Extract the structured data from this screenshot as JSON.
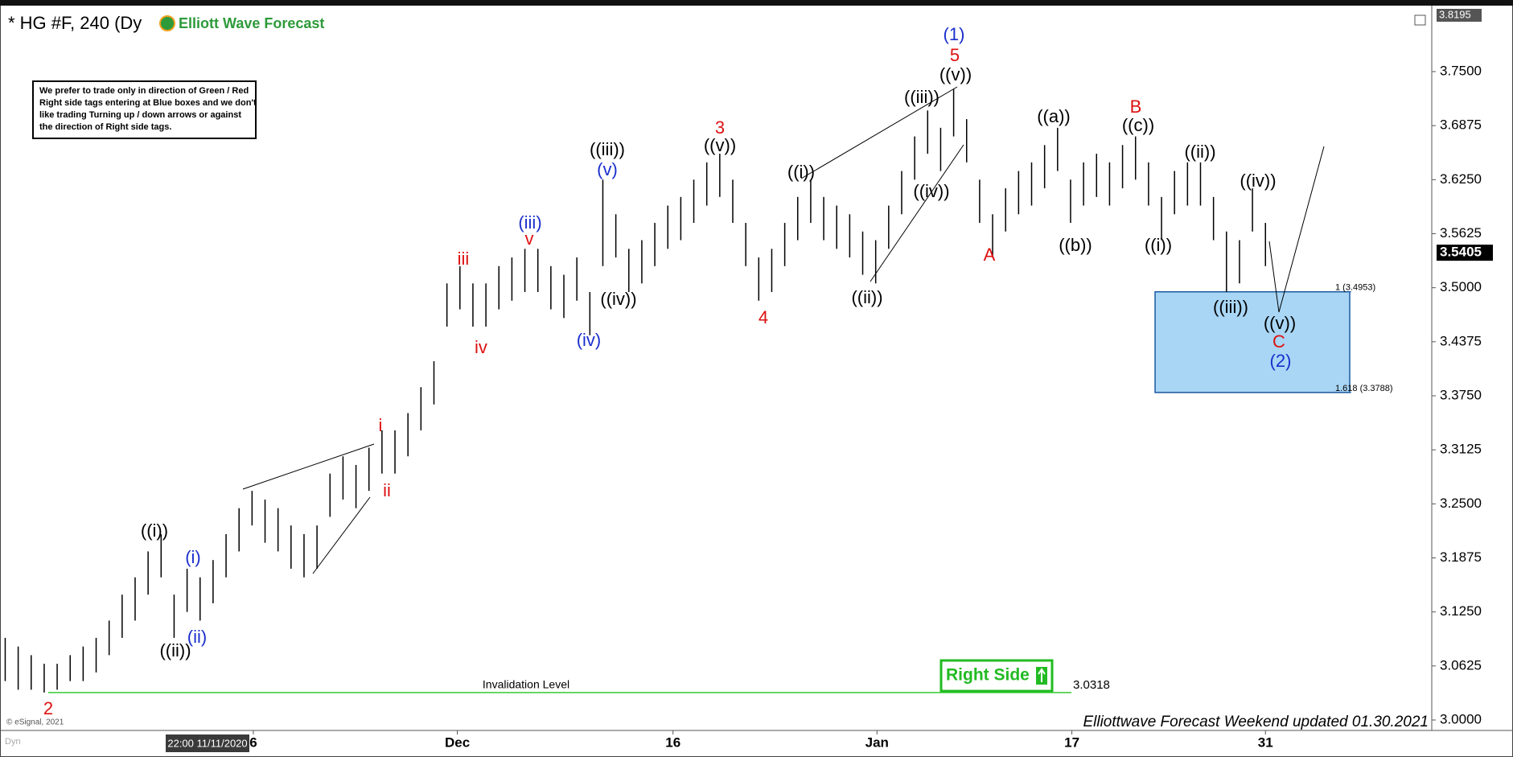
{
  "chart_data": {
    "type": "ohlc",
    "title": "* HG #F, 240 (Dy",
    "brand": "Elliott Wave Forecast",
    "disclaimer": [
      "We prefer to trade only in direction of Green / Red",
      "Right side tags entering at Blue boxes and we don't",
      "like trading Turning up / down arrows or against",
      "the direction of Right side tags."
    ],
    "color": "#000000",
    "high": [
      3.095,
      3.085,
      3.075,
      3.065,
      3.065,
      3.075,
      3.085,
      3.095,
      3.115,
      3.145,
      3.165,
      3.195,
      3.215,
      3.145,
      3.175,
      3.165,
      3.185,
      3.215,
      3.245,
      3.265,
      3.255,
      3.245,
      3.225,
      3.215,
      3.225,
      3.285,
      3.305,
      3.295,
      3.315,
      3.335,
      3.335,
      3.355,
      3.385,
      3.415,
      3.505,
      3.525,
      3.505,
      3.505,
      3.525,
      3.535,
      3.545,
      3.545,
      3.525,
      3.515,
      3.535,
      3.495,
      3.625,
      3.585,
      3.545,
      3.555,
      3.575,
      3.595,
      3.605,
      3.625,
      3.645,
      3.655,
      3.625,
      3.575,
      3.535,
      3.545,
      3.575,
      3.605,
      3.625,
      3.605,
      3.595,
      3.585,
      3.565,
      3.555,
      3.595,
      3.635,
      3.675,
      3.705,
      3.685,
      3.73,
      3.695,
      3.625,
      3.585,
      3.615,
      3.635,
      3.645,
      3.665,
      3.685,
      3.625,
      3.645,
      3.655,
      3.645,
      3.665,
      3.675,
      3.645,
      3.605,
      3.635,
      3.645,
      3.645,
      3.605,
      3.565,
      3.555,
      3.615,
      3.575
    ],
    "low": [
      3.045,
      3.035,
      3.035,
      3.0318,
      3.035,
      3.045,
      3.045,
      3.055,
      3.075,
      3.095,
      3.115,
      3.145,
      3.165,
      3.095,
      3.125,
      3.115,
      3.135,
      3.165,
      3.195,
      3.225,
      3.205,
      3.195,
      3.175,
      3.165,
      3.175,
      3.235,
      3.255,
      3.245,
      3.265,
      3.285,
      3.285,
      3.305,
      3.335,
      3.365,
      3.455,
      3.475,
      3.455,
      3.455,
      3.475,
      3.485,
      3.495,
      3.495,
      3.475,
      3.465,
      3.485,
      3.445,
      3.525,
      3.535,
      3.495,
      3.505,
      3.525,
      3.545,
      3.555,
      3.575,
      3.595,
      3.605,
      3.575,
      3.525,
      3.485,
      3.495,
      3.525,
      3.555,
      3.575,
      3.555,
      3.545,
      3.535,
      3.515,
      3.505,
      3.545,
      3.585,
      3.625,
      3.655,
      3.635,
      3.675,
      3.645,
      3.575,
      3.535,
      3.565,
      3.585,
      3.595,
      3.615,
      3.635,
      3.575,
      3.595,
      3.605,
      3.595,
      3.615,
      3.625,
      3.595,
      3.555,
      3.585,
      3.595,
      3.595,
      3.555,
      3.495,
      3.505,
      3.565,
      3.525
    ],
    "xlim": [
      -0.4,
      109.8
    ],
    "xticks": [
      {
        "value": 19.1,
        "label": "6"
      },
      {
        "value": 34.8,
        "label": "Dec"
      },
      {
        "value": 51.4,
        "label": "16"
      },
      {
        "value": 67.1,
        "label": "Jan"
      },
      {
        "value": 82.1,
        "label": "17"
      },
      {
        "value": 97.0,
        "label": "31"
      }
    ],
    "ylim": [
      2.9879,
      3.8235
    ],
    "yticks": [
      {
        "value": 3.0,
        "label": "3.0000"
      },
      {
        "value": 3.0625,
        "label": "3.0625"
      },
      {
        "value": 3.125,
        "label": "3.1250"
      },
      {
        "value": 3.1875,
        "label": "3.1875"
      },
      {
        "value": 3.25,
        "label": "3.2500"
      },
      {
        "value": 3.3125,
        "label": "3.3125"
      },
      {
        "value": 3.375,
        "label": "3.3750"
      },
      {
        "value": 3.4375,
        "label": "3.4375"
      },
      {
        "value": 3.5,
        "label": "3.5000"
      },
      {
        "value": 3.5625,
        "label": "3.5625"
      },
      {
        "value": 3.625,
        "label": "3.6250"
      },
      {
        "value": 3.6875,
        "label": "3.6875"
      },
      {
        "value": 3.75,
        "label": "3.7500"
      }
    ],
    "last_price": 3.5405,
    "top_price": 3.8195,
    "invalidation": {
      "value": 3.0318,
      "text": "Invalidation Level",
      "color": "#33cc33"
    },
    "fib_box": {
      "color": "#a9d6f5",
      "levels": [
        {
          "value": 3.4953,
          "label": "1 (3.4953)"
        },
        {
          "value": 3.3788,
          "label": "1.618 (3.3788)"
        }
      ]
    },
    "waves": [
      {
        "text": "(1)",
        "color": "#1a2fcc"
      },
      {
        "text": "5",
        "color": "#dd1111"
      },
      {
        "text": "((v))",
        "color": "#000000"
      },
      {
        "text": "((iii))",
        "color": "#000000"
      },
      {
        "text": "((iv))",
        "color": "#000000"
      },
      {
        "text": "((i))",
        "color": "#000000"
      },
      {
        "text": "((ii))",
        "color": "#000000"
      },
      {
        "text": "3",
        "color": "#dd1111"
      },
      {
        "text": "((v))",
        "color": "#000000"
      },
      {
        "text": "4",
        "color": "#dd1111"
      },
      {
        "text": "((iii))",
        "color": "#000000"
      },
      {
        "text": "(v)",
        "color": "#1a2fcc"
      },
      {
        "text": "((iv))",
        "color": "#000000"
      },
      {
        "text": "(iv)",
        "color": "#1a2fcc"
      },
      {
        "text": "(iii)",
        "color": "#1a2fcc"
      },
      {
        "text": "v",
        "color": "#dd1111"
      },
      {
        "text": "iii",
        "color": "#dd1111"
      },
      {
        "text": "iv",
        "color": "#dd1111"
      },
      {
        "text": "i",
        "color": "#dd1111"
      },
      {
        "text": "ii",
        "color": "#dd1111"
      },
      {
        "text": "((i))",
        "color": "#000000"
      },
      {
        "text": "((ii))",
        "color": "#000000"
      },
      {
        "text": "(i)",
        "color": "#1a2fcc"
      },
      {
        "text": "(ii)",
        "color": "#1a2fcc"
      },
      {
        "text": "2",
        "color": "#dd1111"
      },
      {
        "text": "A",
        "color": "#dd1111"
      },
      {
        "text": "((a))",
        "color": "#000000"
      },
      {
        "text": "((b))",
        "color": "#000000"
      },
      {
        "text": "B",
        "color": "#dd1111"
      },
      {
        "text": "((c))",
        "color": "#000000"
      },
      {
        "text": "((i))",
        "color": "#000000"
      },
      {
        "text": "((ii))",
        "color": "#000000"
      },
      {
        "text": "((iv))",
        "color": "#000000"
      },
      {
        "text": "((iii))",
        "color": "#000000"
      },
      {
        "text": "((v))",
        "color": "#000000"
      },
      {
        "text": "C",
        "color": "#dd1111"
      },
      {
        "text": "(2)",
        "color": "#1a2fcc"
      }
    ],
    "right_side": "Right Side",
    "right_side_color": "#22bb22",
    "footer": "Elliottwave Forecast Weekend updated 01.30.2021",
    "copyright": "© eSignal, 2021",
    "cursor_time": "22:00 11/11/2020",
    "corner": "Dyn"
  }
}
